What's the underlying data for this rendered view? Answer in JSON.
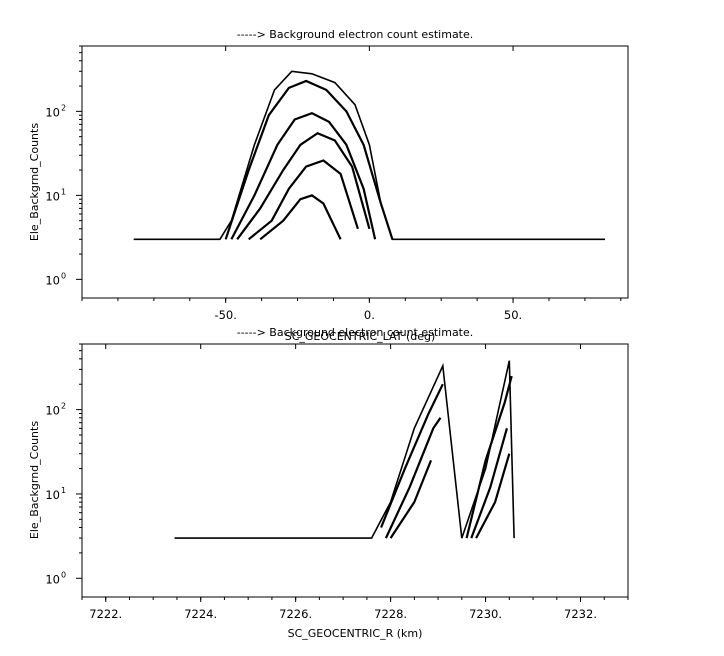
{
  "chart_data": [
    {
      "type": "line",
      "title": "-----> Background electron count estimate.",
      "xlabel": "SC_GEOCENTRIC_LAT (deg)",
      "ylabel": "Ele_Backgrnd_Counts",
      "xlim": [
        -100,
        90
      ],
      "ylim": [
        0.6,
        600
      ],
      "yscale": "log",
      "x_ticks": [
        "-50.",
        "0.",
        "50."
      ],
      "y_ticks": [
        {
          "base": "10",
          "exp": "0"
        },
        {
          "base": "10",
          "exp": "1"
        },
        {
          "base": "10",
          "exp": "2"
        }
      ],
      "x_tick_values": [
        -50,
        0,
        50
      ],
      "series": [
        {
          "x": [
            -82,
            -70,
            -60,
            -52,
            -48,
            -40,
            -33,
            -27,
            -20,
            -12,
            -5,
            0,
            4,
            8,
            15,
            30,
            50,
            82
          ],
          "y": [
            3,
            3,
            3,
            3,
            5,
            40,
            180,
            300,
            280,
            220,
            120,
            40,
            8,
            3,
            3,
            3,
            3,
            3
          ]
        },
        {
          "x": [
            -50,
            -42,
            -35,
            -28,
            -22,
            -15,
            -8,
            -2,
            4,
            8
          ],
          "y": [
            3,
            20,
            90,
            190,
            230,
            180,
            100,
            40,
            8,
            3
          ]
        },
        {
          "x": [
            -48,
            -40,
            -32,
            -26,
            -20,
            -14,
            -8,
            -2,
            2
          ],
          "y": [
            3,
            10,
            40,
            80,
            95,
            75,
            40,
            12,
            3
          ]
        },
        {
          "x": [
            -46,
            -38,
            -30,
            -24,
            -18,
            -12,
            -6,
            0
          ],
          "y": [
            3,
            7,
            20,
            40,
            55,
            45,
            22,
            4
          ]
        },
        {
          "x": [
            -42,
            -34,
            -28,
            -22,
            -16,
            -10,
            -4
          ],
          "y": [
            3,
            5,
            12,
            22,
            26,
            18,
            4
          ]
        },
        {
          "x": [
            -38,
            -30,
            -24,
            -20,
            -16,
            -10
          ],
          "y": [
            3,
            5,
            9,
            10,
            8,
            3
          ]
        }
      ]
    },
    {
      "type": "line",
      "title": "-----> Background electron count estimate.",
      "xlabel": "SC_GEOCENTRIC_R (km)",
      "ylabel": "Ele_Backgrnd_Counts",
      "xlim": [
        7221.5,
        7233.0
      ],
      "ylim": [
        0.6,
        600
      ],
      "yscale": "log",
      "x_ticks": [
        "7222.",
        "7224.",
        "7226.",
        "7228.",
        "7230.",
        "7232."
      ],
      "y_ticks": [
        {
          "base": "10",
          "exp": "0"
        },
        {
          "base": "10",
          "exp": "1"
        },
        {
          "base": "10",
          "exp": "2"
        }
      ],
      "x_tick_values": [
        7222,
        7224,
        7226,
        7228,
        7230,
        7232
      ],
      "series": [
        {
          "x": [
            7223.45,
            7224.5,
            7226.0,
            7227.6,
            7228.0,
            7228.5,
            7229.1,
            7229.5,
            7230.0,
            7230.5,
            7230.6
          ],
          "y": [
            3,
            3,
            3,
            3,
            8,
            60,
            330,
            3,
            20,
            380,
            3
          ]
        },
        {
          "x": [
            7227.8,
            7228.3,
            7228.8,
            7229.1
          ],
          "y": [
            4,
            20,
            90,
            200
          ]
        },
        {
          "x": [
            7227.9,
            7228.4,
            7228.9,
            7229.05
          ],
          "y": [
            3,
            12,
            60,
            80
          ]
        },
        {
          "x": [
            7228.0,
            7228.5,
            7228.85
          ],
          "y": [
            3,
            8,
            25
          ]
        },
        {
          "x": [
            7229.6,
            7230.0,
            7230.4,
            7230.55
          ],
          "y": [
            3,
            25,
            120,
            250
          ]
        },
        {
          "x": [
            7229.7,
            7230.1,
            7230.45
          ],
          "y": [
            3,
            12,
            60
          ]
        },
        {
          "x": [
            7229.8,
            7230.2,
            7230.5
          ],
          "y": [
            3,
            8,
            30
          ]
        }
      ]
    }
  ]
}
